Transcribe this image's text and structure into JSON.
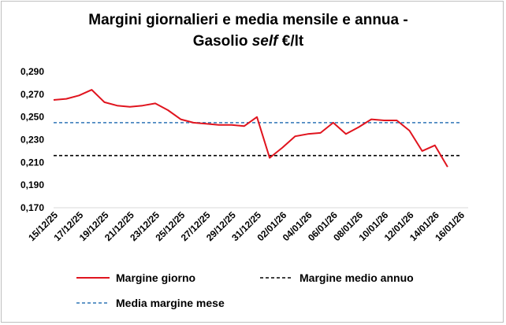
{
  "chart_data": {
    "type": "line",
    "title_line1": "Margini giornalieri e media mensile e annua -",
    "title_line2_prefix": "Gasolio ",
    "title_line2_italic": "self",
    "title_line2_suffix": " €/lt",
    "ylim": [
      0.17,
      0.29
    ],
    "yticks": [
      "0,290",
      "0,270",
      "0,250",
      "0,230",
      "0,210",
      "0,190",
      "0,170"
    ],
    "ytick_values": [
      0.29,
      0.27,
      0.25,
      0.23,
      0.21,
      0.19,
      0.17
    ],
    "x_dates": [
      "15/12/25",
      "16/12/25",
      "17/12/25",
      "18/12/25",
      "19/12/25",
      "20/12/25",
      "21/12/25",
      "22/12/25",
      "23/12/25",
      "24/12/25",
      "25/12/25",
      "26/12/25",
      "27/12/25",
      "28/12/25",
      "29/12/25",
      "30/12/25",
      "31/12/25",
      "01/01/26",
      "02/01/26",
      "03/01/26",
      "04/01/26",
      "05/01/26",
      "06/01/26",
      "07/01/26",
      "08/01/26",
      "09/01/26",
      "10/01/26",
      "11/01/26",
      "12/01/26",
      "13/01/26",
      "14/01/26",
      "15/01/26",
      "16/01/26"
    ],
    "xticks": [
      "15/12/25",
      "17/12/25",
      "19/12/25",
      "21/12/25",
      "23/12/25",
      "25/12/25",
      "27/12/25",
      "29/12/25",
      "31/12/25",
      "02/01/26",
      "04/01/26",
      "06/01/26",
      "08/01/26",
      "10/01/26",
      "12/01/26",
      "14/01/26",
      "16/01/26"
    ],
    "series": [
      {
        "name": "Margine giorno",
        "color": "#e0141e",
        "style": "solid",
        "values": [
          0.265,
          0.266,
          0.269,
          0.274,
          0.263,
          0.26,
          0.259,
          0.26,
          0.262,
          0.256,
          0.248,
          0.245,
          0.244,
          0.243,
          0.243,
          0.242,
          0.25,
          0.214,
          0.223,
          0.233,
          0.235,
          0.236,
          0.245,
          0.235,
          0.241,
          0.248,
          0.247,
          0.247,
          0.238,
          0.22,
          0.225,
          0.206,
          null
        ]
      },
      {
        "name": "Margine medio annuo",
        "color": "#000000",
        "style": "dashed",
        "values_constant": 0.216
      },
      {
        "name": "Media margine mese",
        "color": "#2e75b6",
        "style": "dashed",
        "values_constant": 0.245
      }
    ],
    "grid": false,
    "legend_position": "bottom"
  }
}
